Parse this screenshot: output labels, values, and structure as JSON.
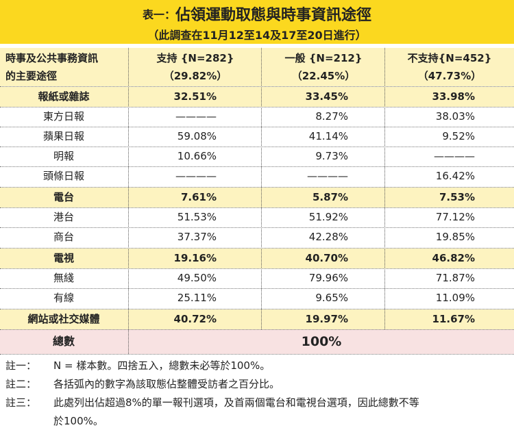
{
  "title": {
    "prefix": "表一：",
    "main": "佔領運動取態與時事資訊途徑"
  },
  "subtitle": "（此調查在11月12至14及17至20日進行）",
  "header": {
    "row_label_1": "時事及公共事務資訊",
    "row_label_2": "的主要途徑",
    "columns": [
      {
        "name": "支持 {N=282}",
        "pct": "（29.82%）"
      },
      {
        "name": "一般 {N=212}",
        "pct": "（22.45%）"
      },
      {
        "name": "不支持{N=452}",
        "pct": "（47.73%）"
      }
    ]
  },
  "rows": [
    {
      "label": "報紙或雜誌",
      "v1": "32.51%",
      "v2": "33.45%",
      "v3": "33.98%"
    },
    {
      "label": "東方日報",
      "v1": "————",
      "v2": "8.27%",
      "v3": "38.03%"
    },
    {
      "label": "蘋果日報",
      "v1": "59.08%",
      "v2": "41.14%",
      "v3": "9.52%"
    },
    {
      "label": "明報",
      "v1": "10.66%",
      "v2": "9.73%",
      "v3": "————"
    },
    {
      "label": "頭條日報",
      "v1": "————",
      "v2": "————",
      "v3": "16.42%"
    },
    {
      "label": "電台",
      "v1": "7.61%",
      "v2": "5.87%",
      "v3": "7.53%"
    },
    {
      "label": "港台",
      "v1": "51.53%",
      "v2": "51.92%",
      "v3": "77.12%"
    },
    {
      "label": "商台",
      "v1": "37.37%",
      "v2": "42.28%",
      "v3": "19.85%"
    },
    {
      "label": "電視",
      "v1": "19.16%",
      "v2": "40.70%",
      "v3": "46.82%"
    },
    {
      "label": "無綫",
      "v1": "49.50%",
      "v2": "79.96%",
      "v3": "71.87%"
    },
    {
      "label": "有線",
      "v1": "25.11%",
      "v2": "9.65%",
      "v3": "11.09%"
    },
    {
      "label": "網站或社交媒體",
      "v1": "40.72%",
      "v2": "19.97%",
      "v3": "11.67%"
    }
  ],
  "total": {
    "label": "總數",
    "value": "100%"
  },
  "notes": [
    {
      "label": "註一：",
      "lines": [
        "N = 樣本數。四捨五入，總數未必等於100%。"
      ]
    },
    {
      "label": "註二：",
      "lines": [
        "各括弧內的數字為該取態佔整體受訪者之百分比。"
      ]
    },
    {
      "label": "註三：",
      "lines": [
        "此處列出佔超過8%的單一報刊選項，及首兩個電台和電視台選項，因此總數不等",
        "於100%。"
      ]
    }
  ],
  "colors": {
    "title_band": "#fbd81f",
    "category_row": "#fdf3c0",
    "total_row": "#f8e2e2"
  }
}
